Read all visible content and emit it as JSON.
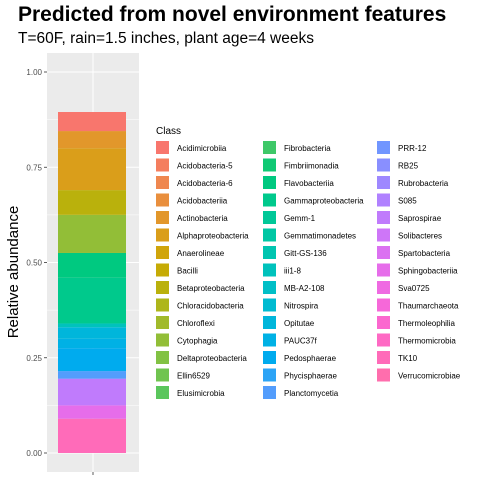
{
  "chart_data": {
    "type": "bar",
    "title": "Predicted from novel environment features",
    "subtitle": "T=60F, rain=1.5 inches, plant age=4 weeks",
    "ylabel": "Relative abundance",
    "xlabel": "",
    "ylim": [
      0,
      1.05
    ],
    "y_ticks": [
      "0.00",
      "0.25",
      "0.50",
      "0.75",
      "1.00"
    ],
    "grid": true,
    "legend_title": "Class",
    "legend_position": "right",
    "stacked": true,
    "series": [
      {
        "name": "Acidimicrobiia",
        "color": "#F8766D",
        "value": 0.05
      },
      {
        "name": "Acidobacteria-5",
        "color": "#F47E5E",
        "value": 0.0
      },
      {
        "name": "Acidobacteria-6",
        "color": "#EF874F",
        "value": 0.0
      },
      {
        "name": "Acidobacteriia",
        "color": "#E98F3E",
        "value": 0.0
      },
      {
        "name": "Actinobacteria",
        "color": "#E2972B",
        "value": 0.045
      },
      {
        "name": "Alphaproteobacteria",
        "color": "#DA9E1A",
        "value": 0.11
      },
      {
        "name": "Anaerolineae",
        "color": "#D0A50B",
        "value": 0.0
      },
      {
        "name": "Bacilli",
        "color": "#C6AB05",
        "value": 0.0
      },
      {
        "name": "Betaproteobacteria",
        "color": "#BAB10C",
        "value": 0.065
      },
      {
        "name": "Chloracidobacteria",
        "color": "#AEB61B",
        "value": 0.0
      },
      {
        "name": "Chloroflexi",
        "color": "#A1BA2A",
        "value": 0.0
      },
      {
        "name": "Cytophagia",
        "color": "#92BE37",
        "value": 0.1
      },
      {
        "name": "Deltaproteobacteria",
        "color": "#82C244",
        "value": 0.0
      },
      {
        "name": "Ellin6529",
        "color": "#70C450",
        "value": 0.0
      },
      {
        "name": "Elusimicrobia",
        "color": "#5AC65C",
        "value": 0.0
      },
      {
        "name": "Fibrobacteria",
        "color": "#3EC868",
        "value": 0.0
      },
      {
        "name": "Fimbriimonadia",
        "color": "#10C974",
        "value": 0.0
      },
      {
        "name": "Flavobacteriia",
        "color": "#00C980",
        "value": 0.065
      },
      {
        "name": "Gammaproteobacteria",
        "color": "#00C98C",
        "value": 0.12
      },
      {
        "name": "Gemm-1",
        "color": "#00C898",
        "value": 0.0
      },
      {
        "name": "Gemmatimonadetes",
        "color": "#00C7A4",
        "value": 0.0
      },
      {
        "name": "Gitt-GS-136",
        "color": "#00C5B0",
        "value": 0.0
      },
      {
        "name": "iii1-8",
        "color": "#00C2BC",
        "value": 0.01
      },
      {
        "name": "MB-A2-108",
        "color": "#00BFC7",
        "value": 0.0
      },
      {
        "name": "Nitrospira",
        "color": "#00BBD1",
        "value": 0.0
      },
      {
        "name": "Opitutae",
        "color": "#00B6DB",
        "value": 0.03
      },
      {
        "name": "PAUC37f",
        "color": "#00B1E5",
        "value": 0.025
      },
      {
        "name": "Pedosphaerae",
        "color": "#00ABEE",
        "value": 0.06
      },
      {
        "name": "Phycisphaerae",
        "color": "#2CA4F6",
        "value": 0.0
      },
      {
        "name": "Planctomycetia",
        "color": "#539DFC",
        "value": 0.02
      },
      {
        "name": "PRR-12",
        "color": "#7196FF",
        "value": 0.0
      },
      {
        "name": "RB25",
        "color": "#898FFF",
        "value": 0.0
      },
      {
        "name": "Rubrobacteria",
        "color": "#9E88FF",
        "value": 0.0
      },
      {
        "name": "S085",
        "color": "#B081FF",
        "value": 0.0
      },
      {
        "name": "Saprospirae",
        "color": "#C07BFC",
        "value": 0.07
      },
      {
        "name": "Solibacteres",
        "color": "#CE76F8",
        "value": 0.0
      },
      {
        "name": "Spartobacteria",
        "color": "#DB71F1",
        "value": 0.0
      },
      {
        "name": "Sphingobacteriia",
        "color": "#E66DEA",
        "value": 0.035
      },
      {
        "name": "Sva0725",
        "color": "#EF6AE2",
        "value": 0.0
      },
      {
        "name": "Thaumarchaeota",
        "color": "#F668D9",
        "value": 0.0
      },
      {
        "name": "Thermoleophilia",
        "color": "#FB67CF",
        "value": 0.0
      },
      {
        "name": "Thermomicrobia",
        "color": "#FE69C4",
        "value": 0.0
      },
      {
        "name": "TK10",
        "color": "#FF6BB9",
        "value": 0.09
      },
      {
        "name": "Verrucomicrobiae",
        "color": "#FF6EAD",
        "value": 0.0
      }
    ]
  }
}
